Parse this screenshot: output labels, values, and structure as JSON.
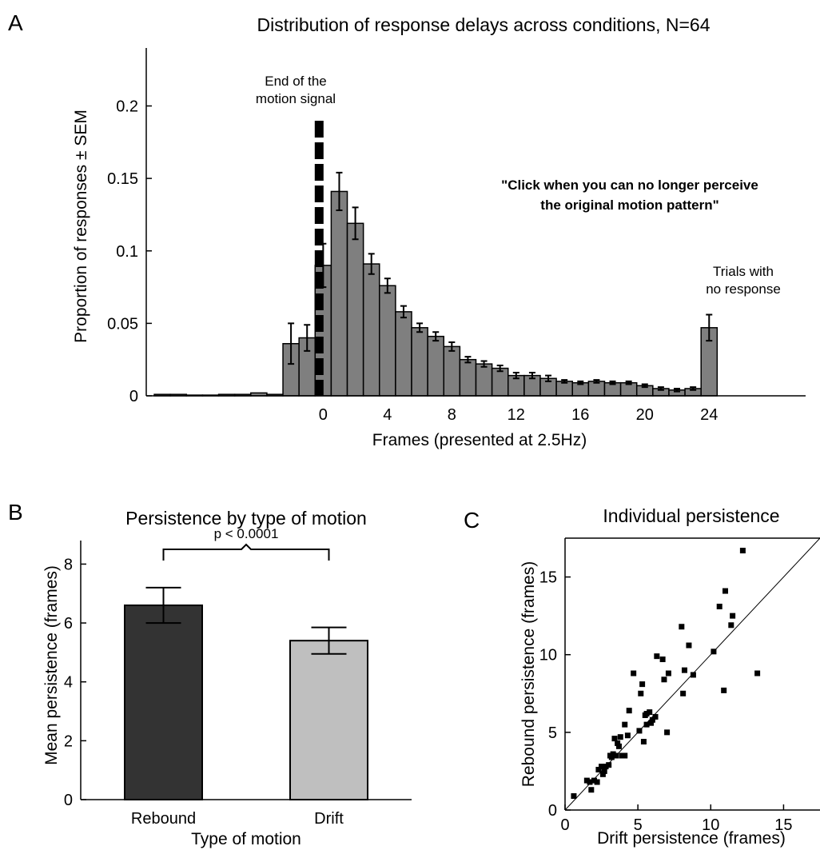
{
  "chart_data": [
    {
      "panel": "A",
      "type": "bar",
      "title": "Distribution of response delays across conditions, N=64",
      "xlabel": "Frames (presented at 2.5Hz)",
      "ylabel": "Proportion of responses ± SEM",
      "xlim": [
        -11,
        30
      ],
      "ylim": [
        0,
        0.24
      ],
      "xticks": [
        0,
        4,
        8,
        12,
        16,
        20,
        24
      ],
      "yticks": [
        0,
        0.05,
        0.1,
        0.15,
        0.2
      ],
      "ytick_labels": [
        "0",
        "0.05",
        "0.1",
        "0.15",
        "0.2"
      ],
      "grid": false,
      "x": [
        -10,
        -9,
        -8,
        -7,
        -6,
        -5,
        -4,
        -3,
        -2,
        -1,
        0,
        1,
        2,
        3,
        4,
        5,
        6,
        7,
        8,
        9,
        10,
        11,
        12,
        13,
        14,
        15,
        16,
        17,
        18,
        19,
        20,
        21,
        22,
        23,
        24
      ],
      "values": [
        0.001,
        0.001,
        0.0005,
        0.0005,
        0.001,
        0.001,
        0.002,
        0.001,
        0.036,
        0.04,
        0.09,
        0.141,
        0.119,
        0.091,
        0.076,
        0.058,
        0.047,
        0.041,
        0.034,
        0.025,
        0.022,
        0.019,
        0.014,
        0.014,
        0.012,
        0.01,
        0.009,
        0.01,
        0.009,
        0.009,
        0.007,
        0.005,
        0.004,
        0.005,
        0.047
      ],
      "errors": [
        0,
        0,
        0,
        0,
        0,
        0,
        0,
        0,
        0.014,
        0.009,
        0.015,
        0.013,
        0.011,
        0.007,
        0.005,
        0.004,
        0.003,
        0.003,
        0.003,
        0.002,
        0.002,
        0.002,
        0.002,
        0.002,
        0.002,
        0.001,
        0.001,
        0.001,
        0.001,
        0.001,
        0.001,
        0.001,
        0.001,
        0.001,
        0.009
      ],
      "vertical_line": {
        "x": -0.25,
        "style": "dashed"
      },
      "annotations": {
        "end_line_1": "End of the",
        "end_line_2": "motion signal",
        "quote_line_1": "\"Click when you can no longer perceive",
        "quote_line_2": "the original motion pattern\"",
        "noresp_line_1": "Trials with",
        "noresp_line_2": "no response"
      }
    },
    {
      "panel": "B",
      "type": "bar",
      "title": "Persistence by type of motion",
      "xlabel": "Type of motion",
      "ylabel": "Mean persistence (frames)",
      "ylim": [
        0,
        8.8
      ],
      "yticks": [
        0,
        2,
        4,
        6,
        8
      ],
      "categories": [
        "Rebound",
        "Drift"
      ],
      "values": [
        6.6,
        5.4
      ],
      "errors": [
        0.6,
        0.45
      ],
      "colors": [
        "#333333",
        "#bfbfbf"
      ],
      "significance": "p < 0.0001",
      "grid": false
    },
    {
      "panel": "C",
      "type": "scatter",
      "title": "Individual persistence",
      "xlabel": "Drift persistence (frames)",
      "ylabel": "Rebound persistence (frames)",
      "xlim": [
        0,
        17.5
      ],
      "ylim": [
        0,
        17.5
      ],
      "xticks": [
        0,
        5,
        10,
        15
      ],
      "yticks": [
        0,
        5,
        10,
        15
      ],
      "identity_line": true,
      "grid": false,
      "points": [
        [
          0.6,
          0.9
        ],
        [
          1.5,
          1.9
        ],
        [
          1.7,
          1.8
        ],
        [
          1.8,
          1.3
        ],
        [
          2.0,
          1.9
        ],
        [
          2.2,
          1.8
        ],
        [
          2.3,
          2.6
        ],
        [
          2.5,
          2.8
        ],
        [
          2.6,
          2.3
        ],
        [
          2.7,
          2.5
        ],
        [
          2.8,
          2.8
        ],
        [
          3.0,
          2.9
        ],
        [
          3.1,
          3.5
        ],
        [
          3.2,
          3.4
        ],
        [
          3.3,
          3.6
        ],
        [
          3.4,
          4.6
        ],
        [
          3.5,
          3.5
        ],
        [
          3.6,
          4.3
        ],
        [
          3.7,
          4.1
        ],
        [
          3.8,
          4.7
        ],
        [
          3.9,
          3.5
        ],
        [
          4.1,
          3.5
        ],
        [
          4.1,
          5.5
        ],
        [
          4.3,
          4.8
        ],
        [
          4.4,
          6.4
        ],
        [
          4.7,
          8.8
        ],
        [
          5.1,
          5.1
        ],
        [
          5.2,
          7.5
        ],
        [
          5.3,
          8.1
        ],
        [
          5.4,
          4.4
        ],
        [
          5.5,
          6.1
        ],
        [
          5.6,
          6.2
        ],
        [
          5.6,
          5.5
        ],
        [
          5.8,
          6.3
        ],
        [
          5.9,
          5.6
        ],
        [
          6.0,
          5.8
        ],
        [
          6.2,
          6.0
        ],
        [
          6.3,
          9.9
        ],
        [
          6.7,
          9.7
        ],
        [
          6.8,
          8.4
        ],
        [
          7.0,
          5.0
        ],
        [
          7.1,
          8.8
        ],
        [
          8.1,
          7.5
        ],
        [
          8.0,
          11.8
        ],
        [
          8.2,
          9.0
        ],
        [
          8.5,
          10.6
        ],
        [
          8.8,
          8.7
        ],
        [
          10.2,
          10.2
        ],
        [
          10.6,
          13.1
        ],
        [
          10.9,
          7.7
        ],
        [
          11.0,
          14.1
        ],
        [
          11.4,
          11.9
        ],
        [
          11.5,
          12.5
        ],
        [
          12.2,
          16.7
        ],
        [
          13.2,
          8.8
        ]
      ]
    }
  ],
  "panels": {
    "a": {
      "letter": "A"
    },
    "b": {
      "letter": "B"
    },
    "c": {
      "letter": "C"
    }
  }
}
